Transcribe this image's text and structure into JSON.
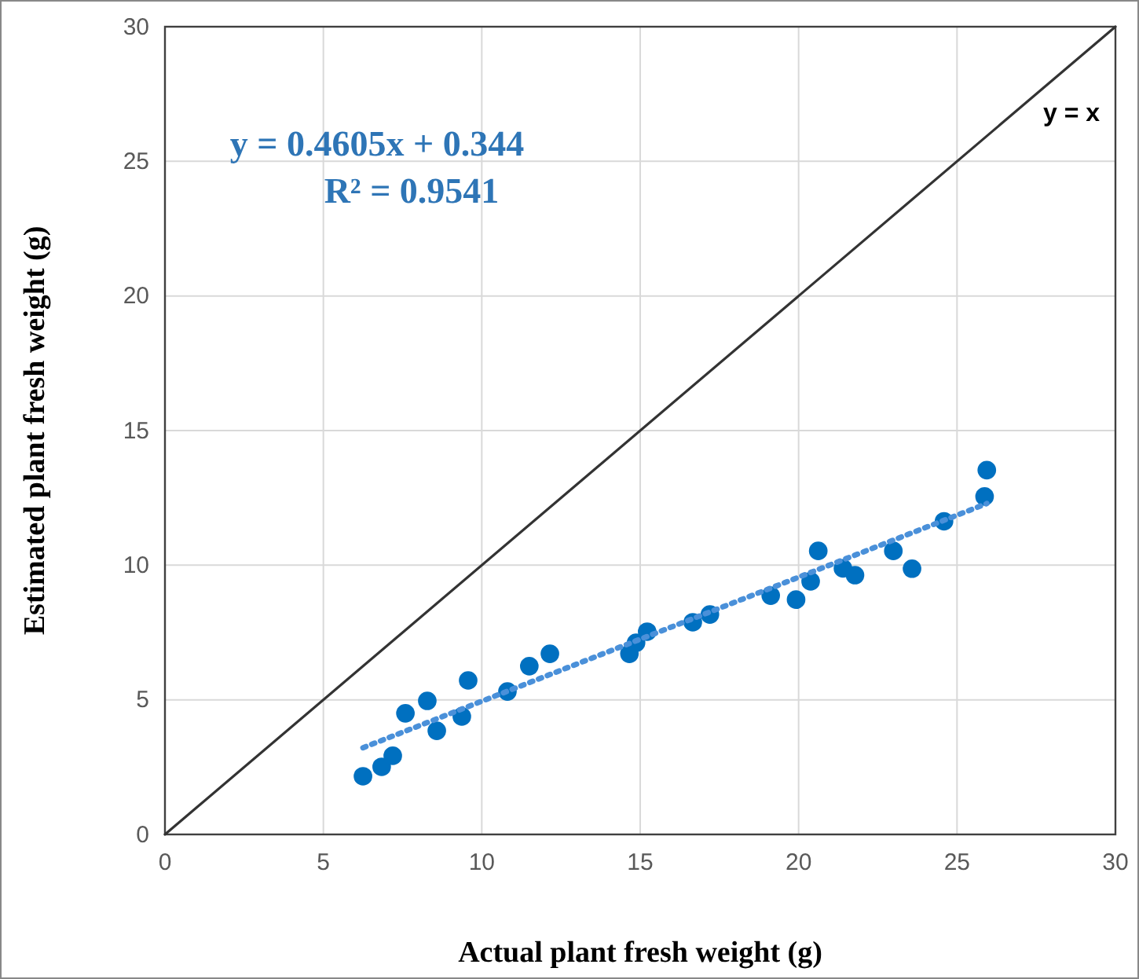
{
  "chart_data": {
    "type": "scatter",
    "xlabel": "Actual plant fresh weight (g)",
    "ylabel": "Estimated plant fresh weight (g)",
    "xlim": [
      0,
      30
    ],
    "ylim": [
      0,
      30
    ],
    "xticks": [
      0,
      5,
      10,
      15,
      20,
      25,
      30
    ],
    "yticks": [
      0,
      5,
      10,
      15,
      20,
      25,
      30
    ],
    "grid": true,
    "annotations": [
      "y = 0.4605x + 0.344",
      "R² = 0.9541"
    ],
    "series": [
      {
        "color": "#0070c0",
        "marker": "circle",
        "x": [
          6.25,
          6.84,
          7.19,
          7.59,
          8.28,
          8.58,
          9.37,
          9.57,
          10.81,
          11.5,
          12.15,
          14.66,
          14.87,
          15.22,
          16.66,
          17.2,
          19.12,
          19.92,
          20.38,
          20.62,
          21.4,
          21.78,
          22.99,
          23.58,
          24.59,
          25.87,
          25.94
        ],
        "values": [
          2.16,
          2.51,
          2.92,
          4.5,
          4.96,
          3.85,
          4.38,
          5.72,
          5.31,
          6.25,
          6.71,
          6.71,
          7.12,
          7.53,
          7.88,
          8.17,
          8.87,
          8.72,
          9.4,
          10.53,
          9.88,
          9.63,
          10.53,
          9.87,
          11.63,
          12.55,
          13.53
        ]
      },
      {
        "type": "line",
        "color": "#4a90d9",
        "line_style": "dotted",
        "x": [
          6.25,
          25.94
        ],
        "values": [
          3.22,
          12.29
        ]
      },
      {
        "type": "line",
        "name": "y = x",
        "color": "#333333",
        "line_style": "solid",
        "x": [
          0,
          30
        ],
        "values": [
          0,
          30
        ]
      }
    ]
  }
}
